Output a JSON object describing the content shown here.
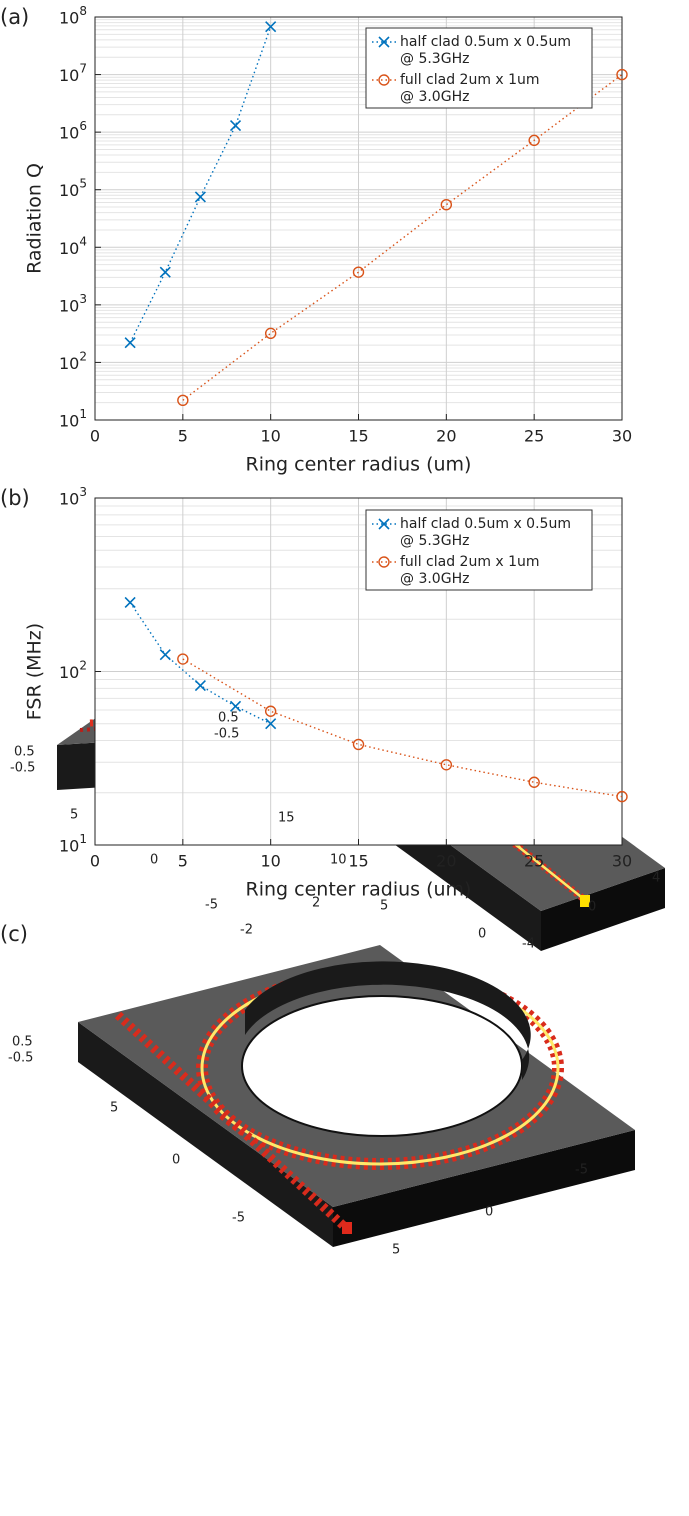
{
  "chart_data": [
    {
      "type": "line",
      "panel_label": "(a)",
      "xlabel": "Ring center radius (um)",
      "ylabel": "Radiation Q",
      "xlim": [
        0,
        30
      ],
      "xticks": [
        0,
        5,
        10,
        15,
        20,
        25,
        30
      ],
      "ylim": [
        10,
        100000000
      ],
      "log_y": true,
      "grid": true,
      "minor_grid": true,
      "legend": "upper right",
      "yticks": [
        {
          "value": 10,
          "label": "10^1"
        },
        {
          "value": 100,
          "label": "10^2"
        },
        {
          "value": 1000,
          "label": "10^3"
        },
        {
          "value": 10000,
          "label": "10^4"
        },
        {
          "value": 100000,
          "label": "10^5"
        },
        {
          "value": 1000000,
          "label": "10^6"
        },
        {
          "value": 10000000,
          "label": "10^7"
        },
        {
          "value": 100000000,
          "label": "10^8"
        }
      ],
      "series": [
        {
          "name": "half clad 0.5um x 0.5um",
          "note": "@ 5.3GHz",
          "color": "#0072bd",
          "marker": "x",
          "x": [
            2,
            4,
            6,
            8,
            10
          ],
          "values": [
            220,
            3700,
            75000,
            1300000,
            68000000
          ]
        },
        {
          "name": "full clad 2um x 1um",
          "note": "@ 3.0GHz",
          "color": "#d95319",
          "marker": "o",
          "x": [
            5,
            10,
            15,
            20,
            25,
            30
          ],
          "values": [
            22,
            320,
            3700,
            55000,
            720000,
            10000000
          ]
        }
      ]
    },
    {
      "type": "line",
      "panel_label": "(b)",
      "xlabel": "Ring center radius (um)",
      "ylabel": "FSR (MHz)",
      "xlim": [
        0,
        30
      ],
      "xticks": [
        0,
        5,
        10,
        15,
        20,
        25,
        30
      ],
      "ylim": [
        10,
        1000
      ],
      "log_y": true,
      "grid": true,
      "minor_grid": true,
      "legend": "upper right",
      "yticks": [
        {
          "value": 10,
          "label": "10^1"
        },
        {
          "value": 100,
          "label": "10^2"
        },
        {
          "value": 1000,
          "label": "10^3"
        }
      ],
      "series": [
        {
          "name": "half clad 0.5um x 0.5um",
          "note": "@ 5.3GHz",
          "color": "#0072bd",
          "marker": "x",
          "x": [
            2,
            4,
            6,
            8,
            10
          ],
          "values": [
            250,
            125,
            83,
            63,
            50
          ]
        },
        {
          "name": "full clad 2um x 1um",
          "note": "@ 3.0GHz",
          "color": "#d95319",
          "marker": "o",
          "x": [
            5,
            10,
            15,
            20,
            25,
            30
          ],
          "values": [
            118,
            59,
            38,
            29,
            23,
            19
          ]
        }
      ]
    }
  ],
  "figure_c": {
    "panel_label": "(c)",
    "panels": [
      {
        "ticks": [
          "0.5",
          "-0.5",
          "5",
          "0",
          "-5",
          "-2",
          "2"
        ]
      },
      {
        "ticks": [
          "0.5",
          "-0.5",
          "15",
          "10",
          "5",
          "0",
          "-4",
          "0",
          "4"
        ]
      },
      {
        "ticks": [
          "0.5",
          "-0.5",
          "5",
          "0",
          "-5",
          "-5",
          "0",
          "5"
        ]
      }
    ]
  }
}
